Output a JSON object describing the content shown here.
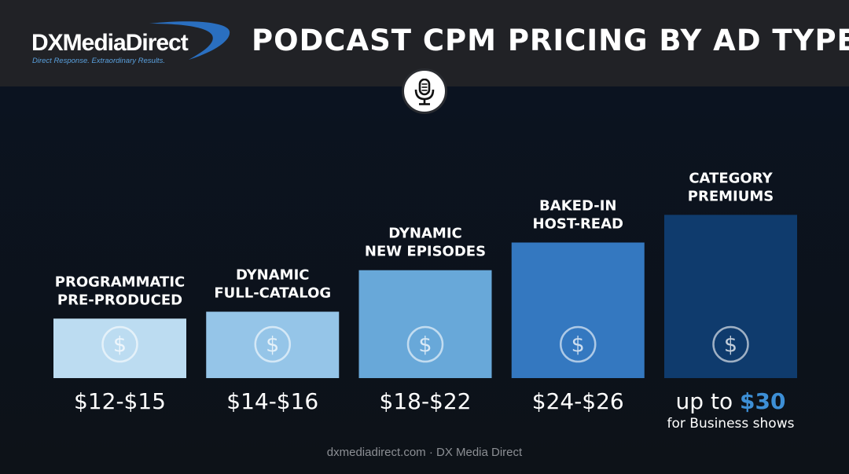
{
  "header": {
    "logo_text": "DXMediaDirect",
    "logo_tagline": "Direct Response. Extraordinary Results.",
    "title": "PODCAST CPM PRICING BY AD TYPE"
  },
  "icons": {
    "badge": "microphone-icon",
    "bar": "dollar-icon"
  },
  "colors": {
    "background": "#0c1119",
    "header": "#212226",
    "accent": "#3d8fd6",
    "bars": [
      "#bcdcf1",
      "#95c5e8",
      "#68a8d9",
      "#3478c0",
      "#0f3b6d"
    ]
  },
  "chart_data": {
    "type": "bar",
    "categories": [
      [
        "PROGRAMMATIC",
        "PRE-PRODUCED"
      ],
      [
        "DYNAMIC",
        "FULL-CATALOG"
      ],
      [
        "DYNAMIC",
        "NEW EPISODES"
      ],
      [
        "BAKED-IN",
        "HOST-READ"
      ],
      [
        "CATEGORY",
        "PREMIUMS"
      ]
    ],
    "ranges": [
      [
        12,
        15
      ],
      [
        14,
        16
      ],
      [
        18,
        22
      ],
      [
        24,
        26
      ],
      [
        null,
        30
      ]
    ],
    "value_labels": [
      "$12-$15",
      "$14-$16",
      "$18-$22",
      "$24-$26",
      ""
    ],
    "last_label": {
      "prefix": "up to ",
      "value": "$30",
      "note": "for Business shows"
    },
    "dollar_symbol": "$"
  },
  "footer": "dxmediadirect.com · DX Media Direct"
}
